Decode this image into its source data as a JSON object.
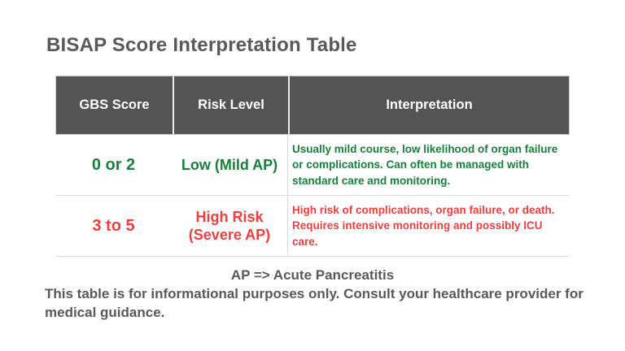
{
  "title": "BISAP Score Interpretation Table",
  "table": {
    "headers": [
      "GBS Score",
      "Risk Level",
      "Interpretation"
    ],
    "rows": [
      {
        "score": "0 or 2",
        "risk_level": "Low (Mild AP)",
        "interpretation": "Usually mild course, low likelihood of organ failure or complications. Can often be managed with standard care and monitoring.",
        "color": "#17803c"
      },
      {
        "score": "3 to 5",
        "risk_level": "High Risk (Severe AP)",
        "interpretation": "High risk of complications, organ failure, or death. Requires intensive monitoring and possibly ICU care.",
        "color": "#f23d3d"
      }
    ]
  },
  "footnote": "AP => Acute Pancreatitis",
  "disclaimer": "This table is for informational purposes only. Consult your healthcare provider for medical guidance.",
  "colors": {
    "header_background": "#545454",
    "header_text": "#ffffff",
    "body_text": "#595959",
    "low_risk_green": "#17803c",
    "high_risk_red": "#f23d3d",
    "divider_gray": "#dcdcdc"
  }
}
